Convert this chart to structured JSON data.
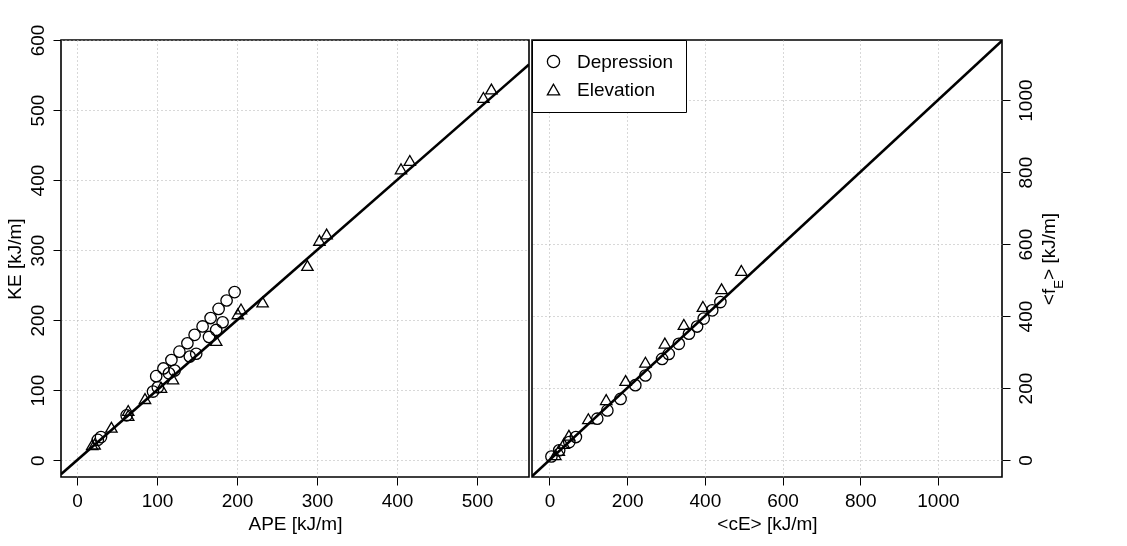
{
  "chart_data": [
    {
      "type": "scatter",
      "xlabel": "APE [kJ/m]",
      "ylabel": "KE [kJ/m]",
      "xlim": [
        -20,
        565
      ],
      "ylim": [
        -24,
        600
      ],
      "xticks": [
        0,
        100,
        200,
        300,
        400,
        500
      ],
      "yticks": [
        0,
        100,
        200,
        300,
        400,
        500,
        600
      ],
      "grid": true,
      "legend": false,
      "series": [
        {
          "color": "#000000",
          "marker": "circle",
          "x": [
            197,
            187,
            177,
            167,
            157,
            147,
            138,
            128,
            118,
            108,
            99,
            182,
            174,
            165,
            149,
            141,
            122,
            115,
            101,
            95,
            62,
            30,
            26
          ],
          "values": [
            240,
            228,
            216,
            203,
            191,
            179,
            167,
            155,
            143,
            131,
            120,
            197,
            186,
            176,
            152,
            148,
            128,
            124,
            104,
            98,
            64,
            33,
            29
          ]
        },
        {
          "color": "#000000",
          "marker": "triangle",
          "x": [
            518,
            508,
            416,
            405,
            312,
            303,
            288,
            232,
            205,
            201,
            174,
            120,
            105,
            85,
            64,
            64,
            43,
            22,
            19
          ],
          "values": [
            530,
            518,
            428,
            416,
            323,
            314,
            278,
            226,
            216,
            209,
            171,
            116,
            104,
            88,
            71,
            64,
            47,
            23,
            22
          ]
        },
        {
          "type": "line",
          "color": "#000000",
          "x": [
            -20,
            565
          ],
          "values": [
            -20,
            565
          ]
        }
      ]
    },
    {
      "type": "scatter",
      "xlabel": "<cE> [kJ/m]",
      "y2label": "<f$_{E}$> [kJ/m]",
      "xlim": [
        -45,
        1165
      ],
      "y2lim": [
        -47,
        1167
      ],
      "xticks": [
        0,
        200,
        400,
        600,
        800,
        1000
      ],
      "y2ticks": [
        0,
        200,
        400,
        600,
        800,
        1000
      ],
      "grid": true,
      "legend": "top left",
      "series": [
        {
          "name": "Depression",
          "color": "#000000",
          "marker": "circle",
          "axis": "y2",
          "x": [
            440,
            419,
            397,
            380,
            359,
            333,
            307,
            290,
            247,
            221,
            183,
            149,
            123,
            68,
            51,
            25,
            5
          ],
          "values": [
            439,
            416,
            393,
            371,
            351,
            323,
            295,
            281,
            235,
            208,
            170,
            138,
            115,
            64,
            50,
            27,
            10
          ]
        },
        {
          "name": "Elevation",
          "color": "#000000",
          "marker": "triangle",
          "axis": "y2",
          "x": [
            494,
            443,
            395,
            346,
            297,
            247,
            196,
            146,
            100,
            50,
            24,
            15,
            37
          ],
          "values": [
            527,
            476,
            427,
            377,
            325,
            272,
            221,
            168,
            115,
            69,
            27,
            15,
            46
          ]
        },
        {
          "type": "line",
          "color": "#000000",
          "axis": "y2",
          "x": [
            -45,
            1165
          ],
          "values": [
            -45,
            1165
          ]
        }
      ]
    }
  ]
}
